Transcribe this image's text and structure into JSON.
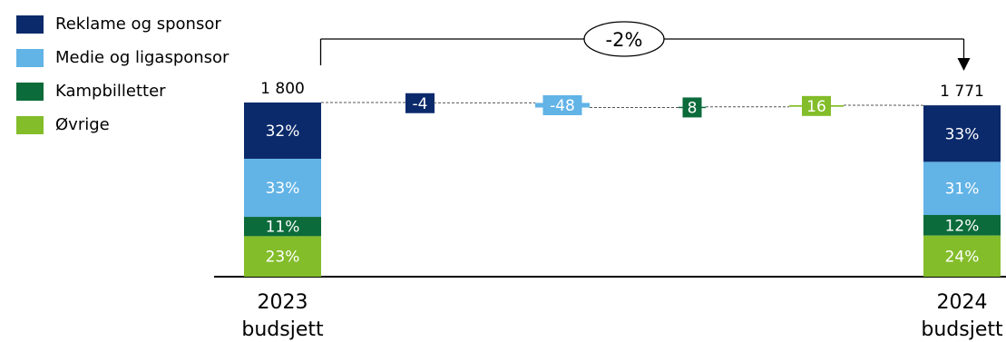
{
  "chart_data": {
    "type": "waterfall",
    "unit_note": "",
    "total_change_label": "-2%",
    "legend": [
      {
        "name": "Reklame og sponsor",
        "color": "#0b2a6b"
      },
      {
        "name": "Medie og ligasponsor",
        "color": "#62b3e6"
      },
      {
        "name": "Kampbilletter",
        "color": "#0b6b3a"
      },
      {
        "name": "Øvrige",
        "color": "#83bd2a"
      }
    ],
    "columns": [
      {
        "type": "total",
        "label": "2023 budsjett",
        "value": 1800,
        "value_label": "1 800",
        "segments": [
          {
            "series": "Reklame og sponsor",
            "share": 32,
            "label": "32%"
          },
          {
            "series": "Medie og ligasponsor",
            "share": 33,
            "label": "33%"
          },
          {
            "series": "Kampbilletter",
            "share": 11,
            "label": "11%"
          },
          {
            "series": "Øvrige",
            "share": 23,
            "label": "23%"
          }
        ]
      },
      {
        "type": "delta",
        "series": "Reklame og sponsor",
        "value": -4,
        "value_label": "-4"
      },
      {
        "type": "delta",
        "series": "Medie og ligasponsor",
        "value": -48,
        "value_label": "-48"
      },
      {
        "type": "delta",
        "series": "Kampbilletter",
        "value": 8,
        "value_label": "8"
      },
      {
        "type": "delta",
        "series": "Øvrige",
        "value": 16,
        "value_label": "16"
      },
      {
        "type": "total",
        "label": "2024 budsjett",
        "value": 1771,
        "value_label": "1 771",
        "segments": [
          {
            "series": "Reklame og sponsor",
            "share": 33,
            "label": "33%"
          },
          {
            "series": "Medie og ligasponsor",
            "share": 31,
            "label": "31%"
          },
          {
            "series": "Kampbilletter",
            "share": 12,
            "label": "12%"
          },
          {
            "series": "Øvrige",
            "share": 24,
            "label": "24%"
          }
        ]
      }
    ]
  }
}
